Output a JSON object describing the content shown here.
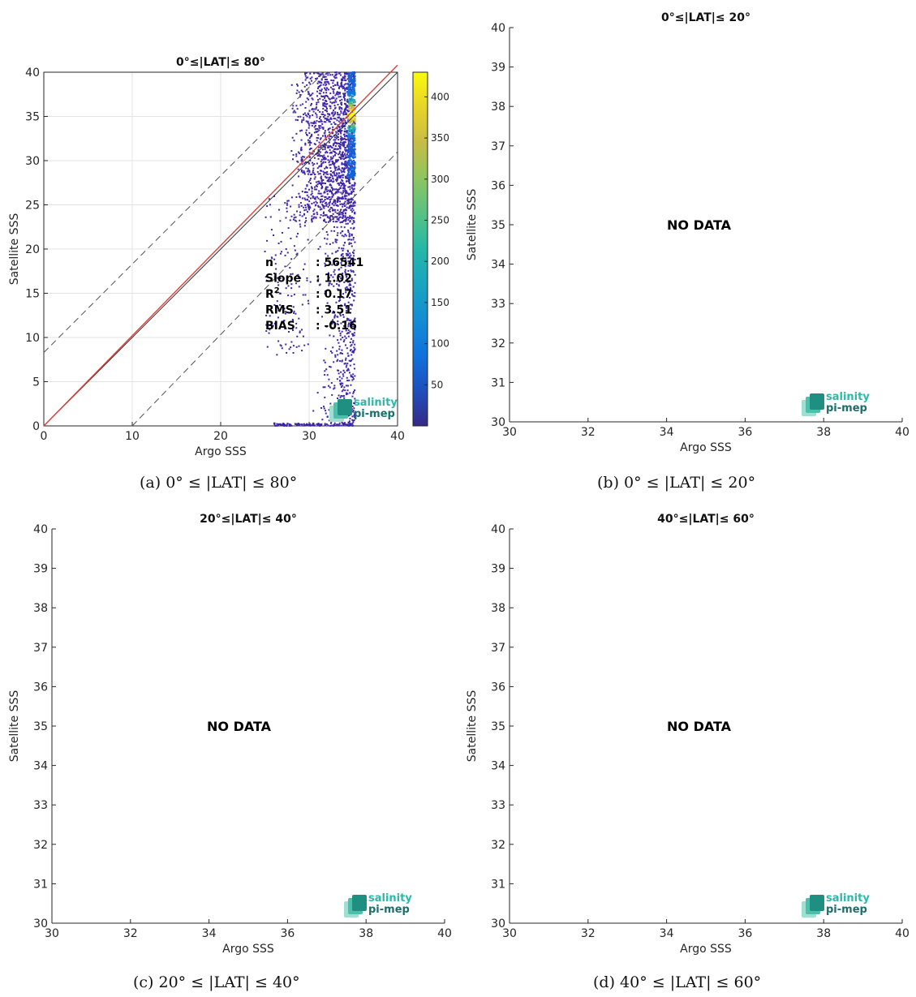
{
  "panels": {
    "a": {
      "title": "0°≤|LAT|≤ 80°",
      "caption": "(a) 0° ≤ |LAT| ≤ 80°"
    },
    "b": {
      "title": "0°≤|LAT|≤ 20°",
      "caption": "(b) 0° ≤ |LAT| ≤ 20°",
      "message": "NO DATA"
    },
    "c": {
      "title": "20°≤|LAT|≤ 40°",
      "caption": "(c) 20° ≤ |LAT| ≤ 40°",
      "message": "NO DATA"
    },
    "d": {
      "title": "40°≤|LAT|≤ 60°",
      "caption": "(d) 40° ≤ |LAT| ≤ 60°",
      "message": "NO DATA"
    }
  },
  "stats": [
    {
      "label": "n",
      "value": ": 56541"
    },
    {
      "label": "Slope",
      "value": ": 1.02"
    },
    {
      "label": "R",
      "sup": "2",
      "value": ": 0.17"
    },
    {
      "label": "RMS",
      "value": ": 3.51"
    },
    {
      "label": "BIAS",
      "value": ": -0.16"
    }
  ],
  "logo": {
    "line1": "salinity",
    "line2": "pi-mep"
  },
  "colors": {
    "fit_line": "#d9423a",
    "identity_line": "#333333",
    "dashed_bounds": "#555555",
    "scatter_low": "#3e26a8",
    "colormap": "parula"
  },
  "chart_data": [
    {
      "type": "scatter",
      "density_colored": true,
      "title": "0°≤|LAT|≤ 80°",
      "xlabel": "Argo SSS",
      "ylabel": "Satellite SSS",
      "xlim": [
        0,
        40
      ],
      "ylim": [
        0,
        40
      ],
      "xticks": [
        0,
        10,
        20,
        30,
        40
      ],
      "yticks": [
        0,
        5,
        10,
        15,
        20,
        25,
        30,
        35,
        40
      ],
      "grid": true,
      "colorbar": {
        "ticks": [
          50,
          100,
          150,
          200,
          250,
          300,
          350,
          400
        ],
        "range": [
          0,
          430
        ]
      },
      "lines": [
        {
          "kind": "identity",
          "style": "solid",
          "x": [
            0,
            40
          ],
          "y": [
            0,
            40
          ]
        },
        {
          "kind": "fit",
          "style": "solid",
          "x": [
            0,
            40
          ],
          "y": [
            0,
            40.8
          ]
        },
        {
          "kind": "upper-bound",
          "style": "dashed",
          "x": [
            0,
            32
          ],
          "y": [
            8.3,
            40.3
          ]
        },
        {
          "kind": "lower-bound",
          "style": "dashed",
          "x": [
            10,
            40
          ],
          "y": [
            0,
            31
          ]
        }
      ],
      "clusters": [
        {
          "x_range": [
            28,
            35.2
          ],
          "y_range": [
            23,
            40
          ],
          "density": "high"
        },
        {
          "x_range": [
            34.5,
            35.2
          ],
          "y_range": [
            28,
            40
          ],
          "density": "very-high"
        },
        {
          "x_range": [
            25,
            35
          ],
          "y_range": [
            0,
            23
          ],
          "density": "sparse"
        },
        {
          "x_range": [
            26,
            35
          ],
          "y_range": [
            0,
            0.2
          ],
          "density": "sparse"
        }
      ]
    },
    {
      "type": "scatter",
      "title": "0°≤|LAT|≤ 20°",
      "xlabel": "Argo SSS",
      "ylabel": "Satellite SSS",
      "xlim": [
        30,
        40
      ],
      "ylim": [
        30,
        40
      ],
      "xticks": [
        30,
        32,
        34,
        36,
        38,
        40
      ],
      "yticks": [
        30,
        31,
        32,
        33,
        34,
        35,
        36,
        37,
        38,
        39,
        40
      ],
      "points": []
    },
    {
      "type": "scatter",
      "title": "20°≤|LAT|≤ 40°",
      "xlabel": "Argo SSS",
      "ylabel": "Satellite SSS",
      "xlim": [
        30,
        40
      ],
      "ylim": [
        30,
        40
      ],
      "xticks": [
        30,
        32,
        34,
        36,
        38,
        40
      ],
      "yticks": [
        30,
        31,
        32,
        33,
        34,
        35,
        36,
        37,
        38,
        39,
        40
      ],
      "points": []
    },
    {
      "type": "scatter",
      "title": "40°≤|LAT|≤ 60°",
      "xlabel": "Argo SSS",
      "ylabel": "Satellite SSS",
      "xlim": [
        30,
        40
      ],
      "ylim": [
        30,
        40
      ],
      "xticks": [
        30,
        32,
        34,
        36,
        38,
        40
      ],
      "yticks": [
        30,
        31,
        32,
        33,
        34,
        35,
        36,
        37,
        38,
        39,
        40
      ],
      "points": []
    }
  ]
}
